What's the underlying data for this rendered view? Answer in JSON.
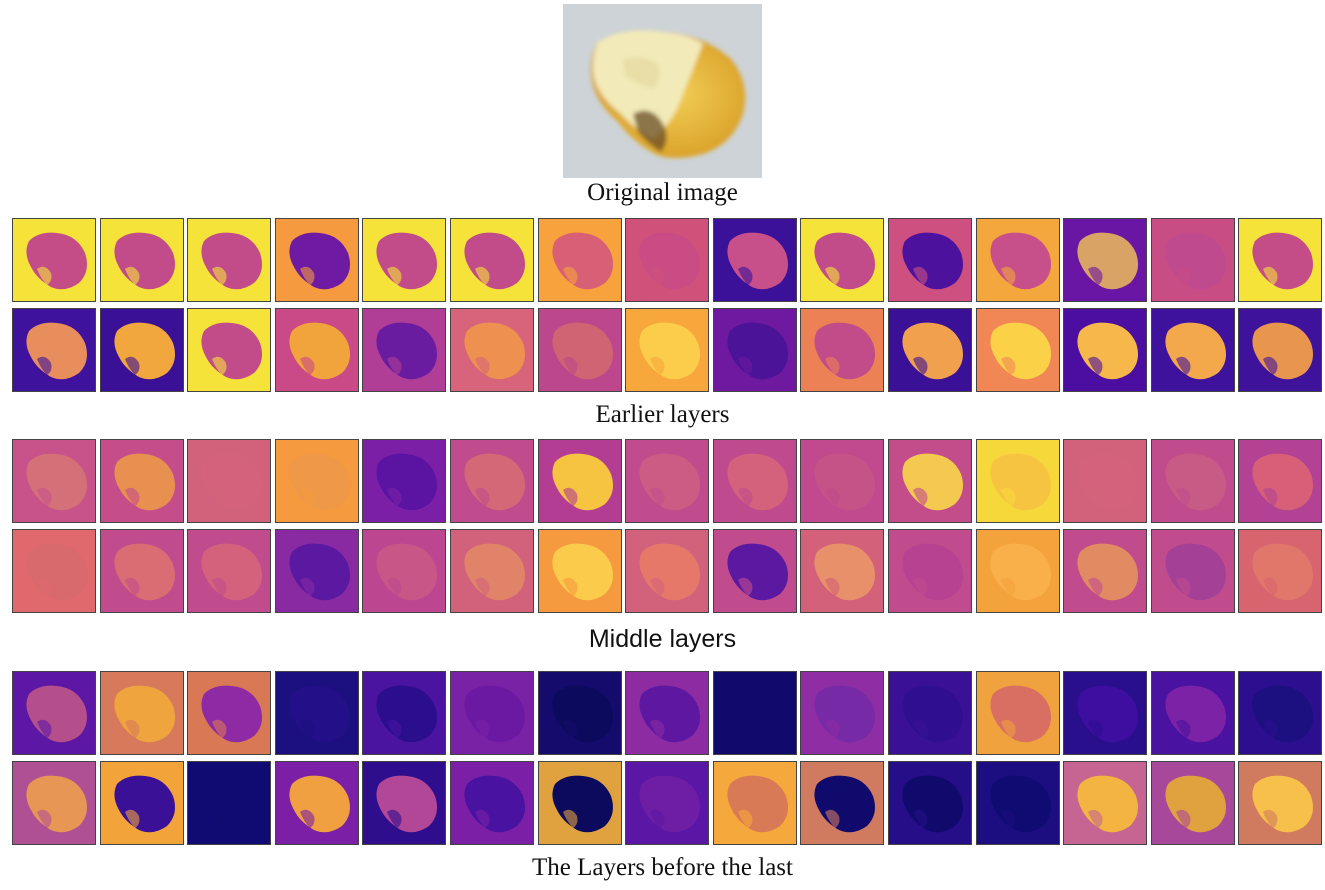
{
  "captions": {
    "original": "Original image",
    "earlier": "Earlier layers",
    "middle": "Middle layers",
    "last": "The Layers before the last"
  },
  "original_image": {
    "background": "#cdd3d7",
    "kernel_white": "#f0e6b4",
    "kernel_yellow": "#e2a829",
    "embryo_brown": "#6a4c25"
  },
  "feature_maps": {
    "earlier_layers": [
      [
        "#f6e33a",
        "#f6e33a",
        "#f6e33a",
        "#f59a3f",
        "#f6e33a",
        "#f6e33a",
        "#f7a23c",
        "#d0527a",
        "#3b1199",
        "#f6e33a",
        "#cd5080",
        "#f4a73c",
        "#6a16a4",
        "#c84d84",
        "#f6e33a"
      ],
      [
        "#3e129c",
        "#3a1196",
        "#f6e33a",
        "#c94a86",
        "#b03e96",
        "#d7647a",
        "#bd478c",
        "#f7a73b",
        "#6e199f",
        "#ec8155",
        "#3a1196",
        "#f28756",
        "#4b0ea0",
        "#3f129d",
        "#3f129c"
      ]
    ],
    "middle_layers": [
      [
        "#c8528a",
        "#c44d8a",
        "#d2627c",
        "#f59a3f",
        "#7b20a6",
        "#c14c8d",
        "#b43d94",
        "#c14c8d",
        "#bf4a8e",
        "#c04a8d",
        "#c34d8b",
        "#f6d83a",
        "#d2627c",
        "#c14c8d",
        "#b34294"
      ],
      [
        "#e0696d",
        "#c14c8d",
        "#c14c8d",
        "#8a2aa3",
        "#bc4790",
        "#d2627c",
        "#f59a3f",
        "#d2627c",
        "#c14c8d",
        "#d4617a",
        "#c14c8d",
        "#f3a23c",
        "#c14c8d",
        "#c14c8d",
        "#d8646f"
      ]
    ],
    "last_layers": [
      [
        "#5c17a4",
        "#d77a5c",
        "#d97854",
        "#1c0f7f",
        "#4a13a0",
        "#7a22a6",
        "#150b6c",
        "#8d2ba3",
        "#0f0a6c",
        "#8e2da4",
        "#3a1196",
        "#f0a23e",
        "#2a0f8d",
        "#4a12a0",
        "#2c0f8e"
      ],
      [
        "#b05094",
        "#f2a43a",
        "#0f0b72",
        "#7a1fa6",
        "#2e0e8d",
        "#7b20a6",
        "#e0a23e",
        "#5a16a4",
        "#f5a83b",
        "#d07a60",
        "#250e88",
        "#1c0e80",
        "#c66492",
        "#a8489a",
        "#d07a60"
      ]
    ],
    "blob_colors": {
      "earlier_layers": [
        [
          "#c44d88",
          "#c24b89",
          "#c24b89",
          "#6e1aa3",
          "#c24b89",
          "#c24b89",
          "#d75f76",
          "#c94c84",
          "#c8508a",
          "#c24b89",
          "#4c129e",
          "#c8508a",
          "#d8a466",
          "#bf4a8e",
          "#c44d88"
        ],
        [
          "#e88d5c",
          "#f2a63e",
          "#c24b89",
          "#f2a43c",
          "#6a1ca1",
          "#ed9050",
          "#d16472",
          "#fbcd4a",
          "#4a1398",
          "#c24b89",
          "#f1a14e",
          "#fbd148",
          "#f6b84a",
          "#f3a84c",
          "#e8964e"
        ]
      ],
      "middle_layers": [
        [
          "#d37078",
          "#e89050",
          "#d4627c",
          "#ef9848",
          "#5b14a2",
          "#d56876",
          "#f6c441",
          "#cc5c84",
          "#d4627c",
          "#c65387",
          "#f3c950",
          "#f7c441",
          "#d4627c",
          "#c85a86",
          "#d75f77"
        ],
        [
          "#d86a6e",
          "#d96d73",
          "#d4627c",
          "#5b18a1",
          "#c85787",
          "#e08368",
          "#fbcb4b",
          "#e6786a",
          "#5b18a1",
          "#e8906a",
          "#b74292",
          "#f9b04a",
          "#e28a62",
          "#a44096",
          "#e1776b"
        ]
      ],
      "last_layers": [
        [
          "#b44f8c",
          "#f0a43e",
          "#8f2aa5",
          "#230f88",
          "#2a0e8c",
          "#6b19a3",
          "#0c0a5c",
          "#5e17a1",
          "#0f0a6c",
          "#772aa6",
          "#2f0f8f",
          "#d96f62",
          "#3e0ea0",
          "#7b22a6",
          "#1c0f80"
        ],
        [
          "#e79656",
          "#3a1196",
          "#0f0b72",
          "#f0a040",
          "#b14796",
          "#4a12a0",
          "#0c0a5c",
          "#6e1ea4",
          "#d97a56",
          "#0f0a6c",
          "#0f0a6c",
          "#0f0b72",
          "#f3b442",
          "#e0a23e",
          "#f7c04a"
        ]
      ]
    }
  }
}
